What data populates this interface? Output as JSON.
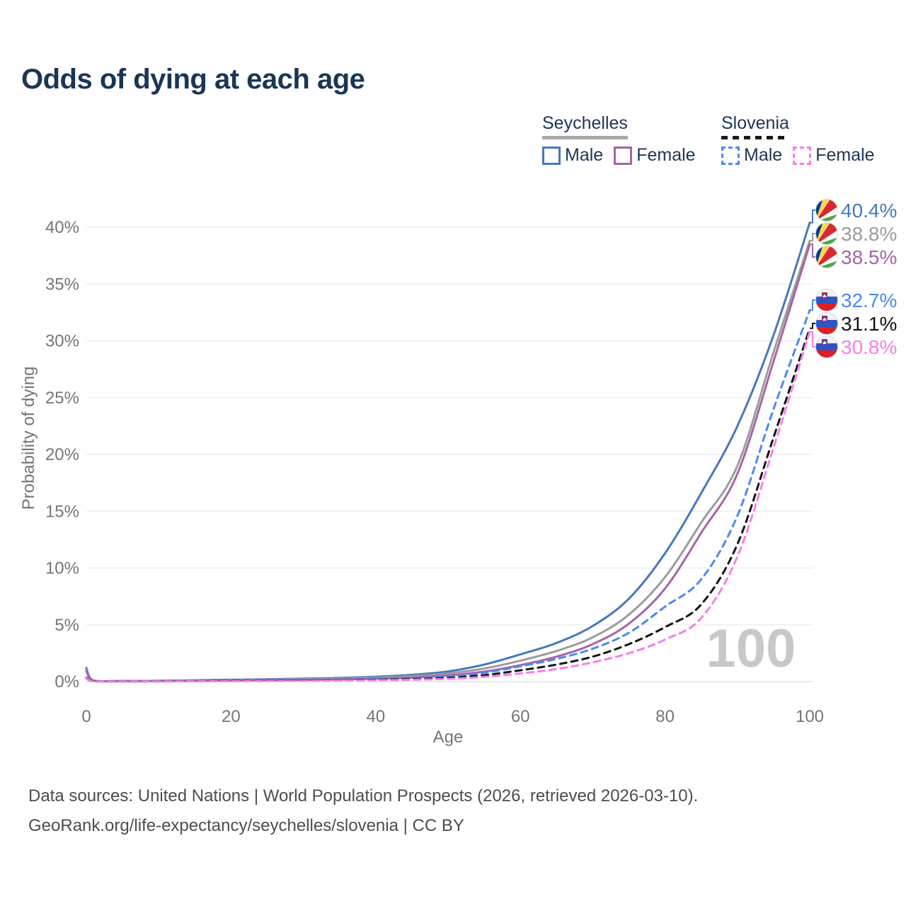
{
  "title": "Odds of dying at each age",
  "legend": {
    "groups": [
      {
        "country": "Seychelles",
        "line_style": "solid",
        "underline_color": "#a8a8a8",
        "items": [
          {
            "label": "Male",
            "color": "#4678bd"
          },
          {
            "label": "Female",
            "color": "#a763ab"
          }
        ]
      },
      {
        "country": "Slovenia",
        "line_style": "dashed",
        "underline_color": "#1a1a1a",
        "items": [
          {
            "label": "Male",
            "color": "#4b8af0"
          },
          {
            "label": "Female",
            "color": "#fb7ce8"
          }
        ]
      }
    ]
  },
  "chart_data": {
    "type": "line",
    "title": "Odds of dying at each age",
    "xlabel": "Age",
    "ylabel": "Probability of dying",
    "x_ticks": [
      0,
      20,
      40,
      60,
      80,
      100
    ],
    "y_ticks_percent": [
      0,
      5,
      10,
      15,
      20,
      25,
      30,
      35,
      40
    ],
    "xlim": [
      0,
      100
    ],
    "ylim_percent": [
      0,
      41
    ],
    "grid": "horizontal-only",
    "legend_position": "top-right",
    "watermark": "100",
    "x_ages": [
      0,
      1,
      5,
      10,
      15,
      20,
      25,
      30,
      35,
      40,
      45,
      50,
      55,
      60,
      65,
      70,
      75,
      80,
      85,
      90,
      95,
      100
    ],
    "series": [
      {
        "id": "seychelles-male",
        "name": "Seychelles Male",
        "country": "Seychelles",
        "sex": "Male",
        "style": "solid",
        "color": "#4678bd",
        "label_color": "#4678bd",
        "flag_icon": "seychelles-flag-icon",
        "end_label": "40.4%",
        "values_percent": [
          1.2,
          0.1,
          0.06,
          0.08,
          0.12,
          0.17,
          0.21,
          0.26,
          0.33,
          0.43,
          0.6,
          0.9,
          1.5,
          2.4,
          3.4,
          4.9,
          7.3,
          11.3,
          16.6,
          22.5,
          30.5,
          40.4
        ]
      },
      {
        "id": "seychelles-both",
        "name": "Seychelles",
        "country": "Seychelles",
        "sex": "Both",
        "style": "solid",
        "color": "#9c9c9c",
        "label_color": "#9c9c9c",
        "flag_icon": "seychelles-flag-icon",
        "end_label": "38.8%",
        "values_percent": [
          1.05,
          0.09,
          0.05,
          0.07,
          0.1,
          0.14,
          0.17,
          0.21,
          0.27,
          0.35,
          0.48,
          0.72,
          1.15,
          1.85,
          2.7,
          3.9,
          5.9,
          9.2,
          14.0,
          19.0,
          29.0,
          38.8
        ]
      },
      {
        "id": "seychelles-female",
        "name": "Seychelles Female",
        "country": "Seychelles",
        "sex": "Female",
        "style": "solid",
        "color": "#a763ab",
        "label_color": "#a763ab",
        "flag_icon": "seychelles-flag-icon",
        "end_label": "38.5%",
        "values_percent": [
          0.95,
          0.08,
          0.04,
          0.05,
          0.07,
          0.1,
          0.12,
          0.15,
          0.19,
          0.26,
          0.36,
          0.54,
          0.88,
          1.45,
          2.2,
          3.3,
          5.1,
          8.2,
          13.1,
          18.3,
          28.2,
          38.5
        ]
      },
      {
        "id": "slovenia-male",
        "name": "Slovenia Male",
        "country": "Slovenia",
        "sex": "Male",
        "style": "dashed",
        "color": "#4b8af0",
        "label_color": "#4b8af0",
        "flag_icon": "slovenia-flag-icon",
        "end_label": "32.7%",
        "values_percent": [
          0.35,
          0.03,
          0.02,
          0.03,
          0.05,
          0.08,
          0.1,
          0.13,
          0.16,
          0.21,
          0.29,
          0.45,
          0.78,
          1.35,
          2.0,
          2.9,
          4.3,
          6.6,
          9.0,
          14.6,
          24.0,
          32.7
        ]
      },
      {
        "id": "slovenia-both",
        "name": "Slovenia",
        "country": "Slovenia",
        "sex": "Both",
        "style": "dashed",
        "color": "#141414",
        "label_color": "#141414",
        "flag_icon": "slovenia-flag-icon",
        "end_label": "31.1%",
        "values_percent": [
          0.3,
          0.03,
          0.02,
          0.02,
          0.04,
          0.06,
          0.08,
          0.1,
          0.12,
          0.16,
          0.22,
          0.33,
          0.57,
          1.0,
          1.5,
          2.2,
          3.3,
          4.8,
          6.8,
          12.1,
          21.5,
          31.1
        ]
      },
      {
        "id": "slovenia-female",
        "name": "Slovenia Female",
        "country": "Slovenia",
        "sex": "Female",
        "style": "dashed",
        "color": "#fb7ce8",
        "label_color": "#fb7ce8",
        "flag_icon": "slovenia-flag-icon",
        "end_label": "30.8%",
        "values_percent": [
          0.28,
          0.02,
          0.01,
          0.02,
          0.03,
          0.04,
          0.05,
          0.07,
          0.09,
          0.12,
          0.16,
          0.24,
          0.42,
          0.72,
          1.1,
          1.7,
          2.5,
          3.7,
          5.6,
          11.0,
          20.6,
          30.8
        ]
      }
    ]
  },
  "colors": {
    "title_text": "#1c3557",
    "legend_text": "#1d3557",
    "tick_text": "#757575",
    "gridline": "#ebebeb",
    "zero_line": "#dcdcdc",
    "watermark": "#c8c8c8",
    "footer_text": "#4d4d4d"
  },
  "footer": {
    "line1": "Data sources: United Nations | World Population Prospects (2026, retrieved 2026-03-10).",
    "line2": "GeoRank.org/life-expectancy/seychelles/slovenia | CC BY"
  }
}
